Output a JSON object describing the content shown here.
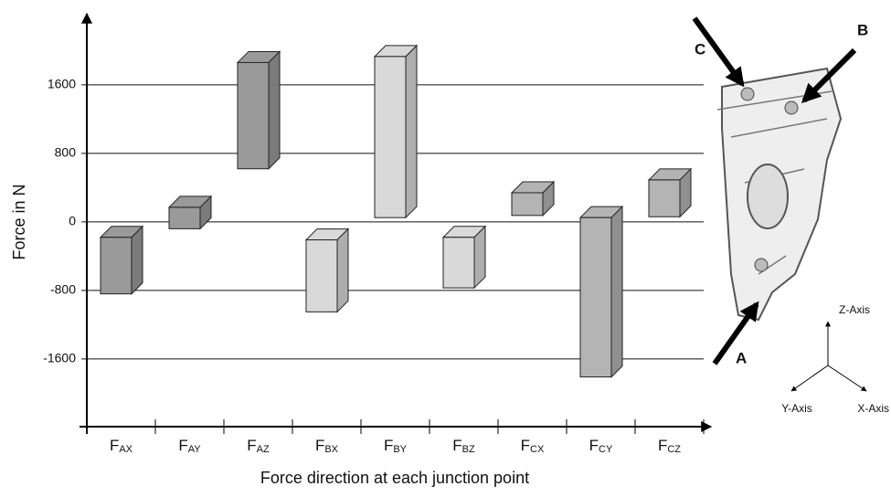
{
  "chart_data": {
    "type": "floating-bar",
    "y_label": "Force in N",
    "x_label": "Force direction at each junction point",
    "categories": [
      {
        "symbol": "F",
        "subscript": "AX"
      },
      {
        "symbol": "F",
        "subscript": "AY"
      },
      {
        "symbol": "F",
        "subscript": "AZ"
      },
      {
        "symbol": "F",
        "subscript": "BX"
      },
      {
        "symbol": "F",
        "subscript": "BY"
      },
      {
        "symbol": "F",
        "subscript": "BZ"
      },
      {
        "symbol": "F",
        "subscript": "CX"
      },
      {
        "symbol": "F",
        "subscript": "CY"
      },
      {
        "symbol": "F",
        "subscript": "CZ"
      }
    ],
    "low": [
      -840,
      -80,
      620,
      -1050,
      50,
      -770,
      75,
      -1810,
      60
    ],
    "high": [
      -180,
      170,
      1860,
      -210,
      1930,
      -180,
      340,
      50,
      490
    ],
    "colors": [
      "#9a9a9a",
      "#9a9a9a",
      "#9a9a9a",
      "#d9d9d9",
      "#d9d9d9",
      "#d9d9d9",
      "#b4b4b4",
      "#b4b4b4",
      "#b4b4b4"
    ],
    "ylim": [
      -2390,
      2430
    ],
    "yticks": [
      -1600,
      -800,
      0,
      800,
      1600
    ],
    "grid": true
  },
  "illustration": {
    "points": [
      "A",
      "B",
      "C"
    ],
    "axes": [
      "Z-Axis",
      "Y-Axis",
      "X-Axis"
    ]
  }
}
